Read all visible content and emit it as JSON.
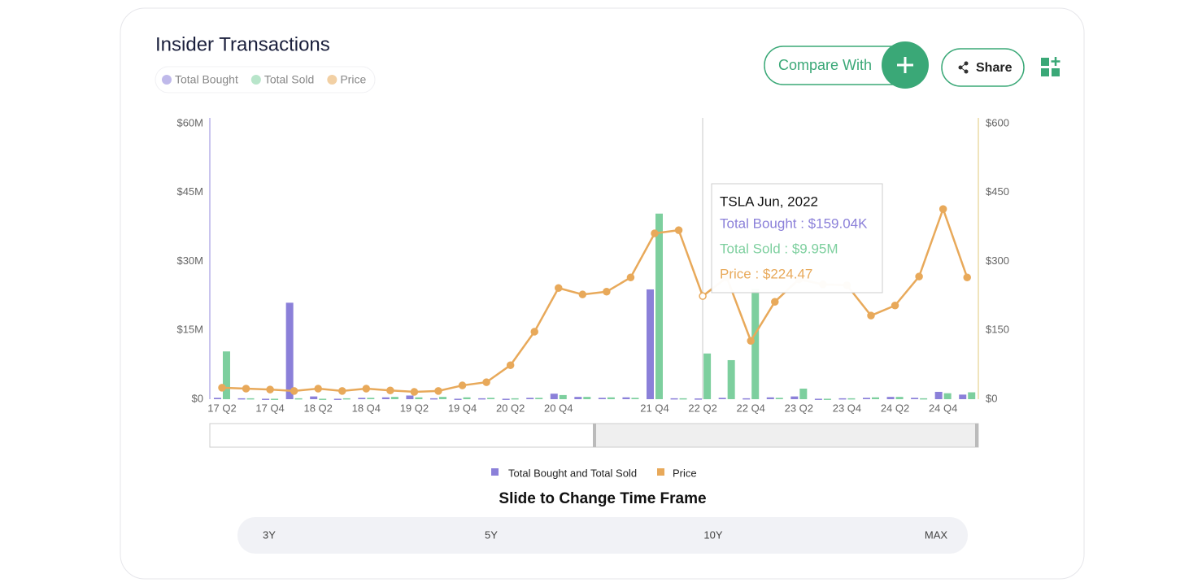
{
  "header": {
    "title": "Insider Transactions",
    "compare_button": "Compare With",
    "share_button": "Share"
  },
  "chart_data": {
    "type": "bar",
    "categories": [
      "17 Q2",
      null,
      "17 Q4",
      null,
      "18 Q2",
      null,
      "18 Q4",
      null,
      "19 Q2",
      null,
      "19 Q4",
      null,
      "20 Q2",
      null,
      "20 Q4",
      null,
      null,
      null,
      "21 Q4",
      null,
      "22 Q2",
      null,
      "22 Q4",
      null,
      "23 Q2",
      null,
      "23 Q4",
      null,
      "24 Q2",
      null,
      "24 Q4",
      null
    ],
    "series": [
      {
        "name": "Total Bought",
        "color": "#8b80d9",
        "axis": "y",
        "values": [
          0.3,
          0.2,
          0.1,
          21,
          0.6,
          0.1,
          0.3,
          0.4,
          0.8,
          0.2,
          0.1,
          0.2,
          0.1,
          0.3,
          1.2,
          0.5,
          0.3,
          0.4,
          23.9,
          0.2,
          0.15904,
          0.3,
          0.2,
          0.4,
          0.6,
          0.1,
          0.2,
          0.3,
          0.5,
          0.3,
          1.6,
          1.0
        ]
      },
      {
        "name": "Total Sold",
        "color": "#7dcf9e",
        "axis": "y",
        "values": [
          10.4,
          0.2,
          0.1,
          0.2,
          0.1,
          0.2,
          0.3,
          0.5,
          0.4,
          0.5,
          0.4,
          0.3,
          0.2,
          0.3,
          0.9,
          0.5,
          0.4,
          0.3,
          40.4,
          0.2,
          9.95,
          8.5,
          24,
          0.3,
          2.3,
          0.1,
          0.2,
          0.4,
          0.5,
          0.2,
          1.3,
          1.5
        ]
      },
      {
        "name": "Price",
        "color": "#e8a95a",
        "axis": "y2",
        "type": "line",
        "values": [
          25,
          23,
          21,
          18,
          23,
          18,
          23,
          19,
          16,
          18,
          30,
          37,
          74,
          147,
          242,
          228,
          234,
          265,
          361,
          368,
          224.47,
          265,
          127,
          212,
          261,
          250,
          248,
          182,
          204,
          267,
          414,
          265
        ]
      }
    ],
    "ylim": [
      0,
      60
    ],
    "yticks": [
      {
        "value": 0,
        "label": "$0"
      },
      {
        "value": 15,
        "label": "$15M"
      },
      {
        "value": 30,
        "label": "$30M"
      },
      {
        "value": 45,
        "label": "$45M"
      },
      {
        "value": 60,
        "label": "$60M"
      }
    ],
    "y2lim": [
      0,
      600
    ],
    "y2ticks": [
      {
        "value": 0,
        "label": "$0"
      },
      {
        "value": 150,
        "label": "$150"
      },
      {
        "value": 300,
        "label": "$300"
      },
      {
        "value": 450,
        "label": "$450"
      },
      {
        "value": 600,
        "label": "$600"
      }
    ],
    "tooltip": {
      "title": "TSLA Jun, 2022",
      "lines": [
        "Total Bought : $159.04K",
        "Total Sold : $9.95M",
        "Price : $224.47"
      ]
    },
    "bottom_legend": [
      "Total Bought and Total Sold",
      "Price"
    ]
  },
  "footer": {
    "slider_caption": "Slide to Change Time Frame",
    "timeframes": [
      "3Y",
      "5Y",
      "10Y",
      "MAX"
    ]
  }
}
